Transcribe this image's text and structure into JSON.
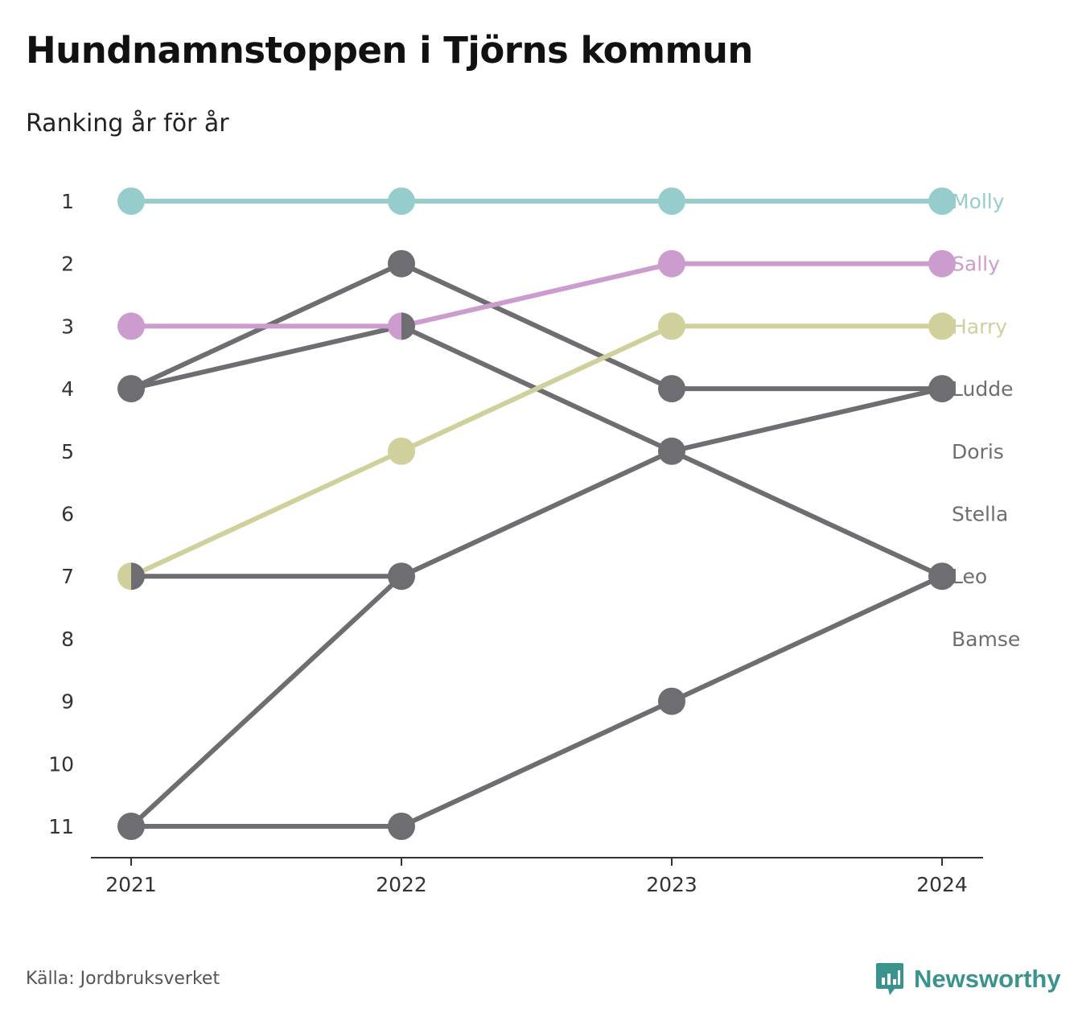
{
  "title": "Hundnamnstoppen i Tjörns kommun",
  "subtitle": "Ranking år för år",
  "source": "Källa: Jordbruksverket",
  "brand": {
    "name": "Newsworthy",
    "icon": "newsworthy-logo-icon",
    "color": "#3a948d"
  },
  "chart_data": {
    "type": "line",
    "subtype": "bump",
    "x": [
      2021,
      2022,
      2023,
      2024
    ],
    "ylim": [
      1,
      11
    ],
    "y_inverted": true,
    "yticks": [
      1,
      2,
      3,
      4,
      5,
      6,
      7,
      8,
      9,
      10,
      11
    ],
    "grid": false,
    "default_color": "#6d6d72",
    "series": [
      {
        "name": "Molly",
        "values": [
          1,
          1,
          1,
          1
        ],
        "color": "#96cccb"
      },
      {
        "name": "Sally",
        "values": [
          3,
          3,
          2,
          2
        ],
        "color": "#cd9ccf"
      },
      {
        "name": "Harry",
        "values": [
          7,
          5,
          3,
          3
        ],
        "color": "#cfd09c"
      },
      {
        "name": "Ludde",
        "values": [
          4,
          2,
          4,
          4
        ],
        "color": "#6d6d72"
      },
      {
        "name": "Doris",
        "values": [
          11,
          7,
          5,
          4
        ],
        "color": "#6d6d72"
      },
      {
        "name": "Stella",
        "values": [
          4,
          3,
          5,
          7
        ],
        "color": "#6d6d72"
      },
      {
        "name": "Leo",
        "values": [
          11,
          11,
          9,
          7
        ],
        "color": "#6d6d72"
      },
      {
        "name": "Bamse",
        "values": [
          7,
          7,
          null,
          null
        ],
        "color": "#6d6d72"
      }
    ],
    "label_ranks": [
      1,
      2,
      3,
      4,
      5,
      6,
      7,
      8
    ]
  }
}
